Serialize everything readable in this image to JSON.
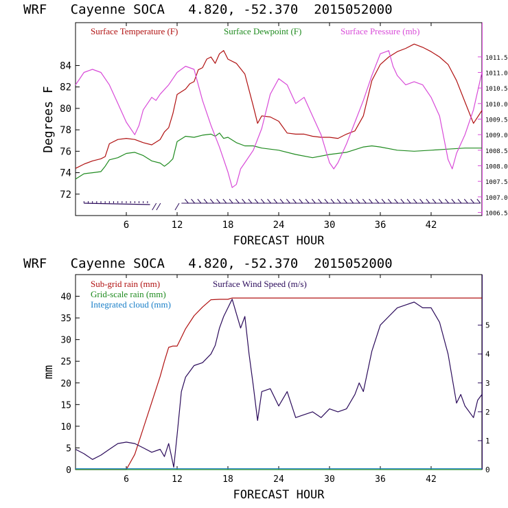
{
  "colors": {
    "temperature": "#b01010",
    "dewpoint": "#1e8a1e",
    "pressure": "#d84ad8",
    "wind": "#2a0a5a",
    "subgrid": "#b01010",
    "gridscale": "#1e8a1e",
    "cloud": "#1a7fc8",
    "axis": "#000000"
  },
  "chart_data": [
    {
      "type": "line",
      "title": "WRF   Cayenne SOCA   4.820, -52.370  2015052000",
      "xlabel": "FORECAST HOUR",
      "ylabel": "Degrees F",
      "x_ticks": [
        "6",
        "12",
        "18",
        "24",
        "30",
        "36",
        "42"
      ],
      "x_tick_values": [
        6,
        12,
        18,
        24,
        30,
        36,
        42
      ],
      "xlim": [
        0,
        48
      ],
      "ylim": [
        70,
        88
      ],
      "y_ticks": [
        "72",
        "74",
        "76",
        "78",
        "80",
        "82",
        "84"
      ],
      "y_tick_values": [
        72,
        74,
        76,
        78,
        80,
        82,
        84
      ],
      "y2lim": [
        1006.4,
        1012.6
      ],
      "y2_ticks": [
        "1006.5",
        "1007.0",
        "1007.5",
        "1008.0",
        "1008.5",
        "1009.0",
        "1009.5",
        "1010.0",
        "1010.5",
        "1011.0",
        "1011.5"
      ],
      "y2_tick_values": [
        1006.5,
        1007.0,
        1007.5,
        1008.0,
        1008.5,
        1009.0,
        1009.5,
        1010.0,
        1010.5,
        1011.0,
        1011.5
      ],
      "series": [
        {
          "name": "Surface Temperature (F)",
          "axis": "left",
          "x": [
            0,
            1,
            2,
            3,
            3.5,
            4,
            5,
            6,
            7,
            8,
            9,
            10,
            10.5,
            11,
            11.5,
            12,
            13,
            13.5,
            14,
            14.5,
            15,
            15.5,
            16,
            16.5,
            17,
            17.5,
            18,
            19,
            20,
            21,
            21.5,
            22,
            23,
            24,
            25,
            26,
            27,
            28,
            29,
            30,
            31,
            32,
            33,
            34,
            35,
            36,
            37,
            38,
            39,
            40,
            41,
            42,
            43,
            44,
            45,
            46,
            47,
            48
          ],
          "y": [
            74.4,
            74.8,
            75.1,
            75.3,
            75.5,
            76.7,
            77.1,
            77.2,
            77.1,
            76.8,
            76.6,
            77.1,
            77.8,
            78.2,
            79.5,
            81.3,
            81.8,
            82.3,
            82.5,
            83.6,
            83.8,
            84.6,
            84.8,
            84.2,
            85.1,
            85.4,
            84.6,
            84.2,
            83.2,
            80.2,
            78.6,
            79.3,
            79.2,
            78.8,
            77.7,
            77.6,
            77.6,
            77.4,
            77.3,
            77.3,
            77.2,
            77.6,
            77.9,
            79.3,
            82.6,
            84.1,
            84.8,
            85.3,
            85.6,
            86.0,
            85.7,
            85.3,
            84.8,
            84.1,
            82.6,
            80.6,
            78.6,
            79.8
          ]
        },
        {
          "name": "Surface Dewpoint (F)",
          "axis": "left",
          "x": [
            0,
            1,
            2,
            3,
            3.5,
            4,
            5,
            6,
            7,
            8,
            9,
            10,
            10.5,
            11,
            11.5,
            12,
            13,
            14,
            15,
            16,
            16.5,
            17,
            17.5,
            18,
            19,
            20,
            21,
            22,
            24,
            26,
            28,
            30,
            32,
            34,
            35,
            36,
            38,
            40,
            42,
            44,
            46,
            48
          ],
          "y": [
            73.4,
            73.9,
            74.0,
            74.1,
            74.6,
            75.2,
            75.4,
            75.8,
            75.9,
            75.6,
            75.1,
            74.9,
            74.6,
            74.9,
            75.3,
            76.9,
            77.4,
            77.3,
            77.5,
            77.6,
            77.4,
            77.7,
            77.2,
            77.3,
            76.8,
            76.5,
            76.5,
            76.3,
            76.1,
            75.7,
            75.4,
            75.7,
            75.9,
            76.4,
            76.5,
            76.4,
            76.1,
            76.0,
            76.1,
            76.2,
            76.3,
            76.3
          ]
        },
        {
          "name": "Surface Pressure (mb)",
          "axis": "right",
          "x": [
            0,
            0.5,
            1,
            2,
            3,
            4,
            5,
            6,
            7,
            7.5,
            8,
            9,
            9.5,
            10,
            11,
            12,
            13,
            14,
            15,
            16,
            17,
            18,
            18.5,
            19,
            19.5,
            20,
            21,
            22,
            23,
            24,
            25,
            26,
            27,
            28,
            29,
            30,
            30.5,
            31,
            32,
            33,
            34,
            35,
            36,
            37,
            37.5,
            38,
            39,
            40,
            41,
            42,
            43,
            44,
            44.5,
            45,
            46,
            47,
            48
          ],
          "y": [
            1010.6,
            1010.8,
            1011.0,
            1011.1,
            1011.0,
            1010.6,
            1010.0,
            1009.4,
            1009.0,
            1009.3,
            1009.8,
            1010.2,
            1010.1,
            1010.3,
            1010.6,
            1011.0,
            1011.2,
            1011.1,
            1010.1,
            1009.3,
            1008.6,
            1007.8,
            1007.3,
            1007.4,
            1007.9,
            1008.1,
            1008.5,
            1009.2,
            1010.3,
            1010.8,
            1010.6,
            1010.0,
            1010.2,
            1009.6,
            1009.0,
            1008.1,
            1007.9,
            1008.1,
            1008.7,
            1009.4,
            1010.1,
            1010.9,
            1011.6,
            1011.7,
            1011.2,
            1010.9,
            1010.6,
            1010.7,
            1010.6,
            1010.2,
            1009.6,
            1008.2,
            1007.9,
            1008.4,
            1009.0,
            1009.8,
            1011.0
          ]
        }
      ]
    },
    {
      "type": "line",
      "title": "WRF   Cayenne SOCA   4.820, -52.370  2015052000",
      "xlabel": "FORECAST HOUR",
      "ylabel": "mm",
      "x_ticks": [
        "6",
        "12",
        "18",
        "24",
        "30",
        "36",
        "42"
      ],
      "x_tick_values": [
        6,
        12,
        18,
        24,
        30,
        36,
        42
      ],
      "xlim": [
        0,
        48
      ],
      "ylim": [
        0,
        45
      ],
      "y_ticks": [
        "0",
        "5",
        "10",
        "15",
        "20",
        "25",
        "30",
        "35",
        "40"
      ],
      "y_tick_values": [
        0,
        5,
        10,
        15,
        20,
        25,
        30,
        35,
        40
      ],
      "y2lim": [
        0,
        6.75
      ],
      "y2_ticks": [
        "0",
        "1",
        "2",
        "3",
        "4",
        "5"
      ],
      "y2_tick_values": [
        0,
        1,
        2,
        3,
        4,
        5
      ],
      "series": [
        {
          "name": "Sub-grid rain (mm)",
          "axis": "left",
          "x": [
            0,
            5.8,
            6,
            7,
            8,
            9,
            10,
            10.5,
            11,
            11.5,
            12,
            12.5,
            13,
            14,
            15,
            16,
            17,
            18,
            18.5,
            19,
            20,
            48
          ],
          "y": [
            0,
            0,
            0,
            3.5,
            9.5,
            15.5,
            21.5,
            25,
            28.2,
            28.5,
            28.5,
            30.5,
            32.5,
            35.5,
            37.5,
            39.2,
            39.3,
            39.3,
            39.6,
            39.6,
            39.6,
            39.6
          ]
        },
        {
          "name": "Grid-scale rain (mm)",
          "axis": "left",
          "x": [
            0,
            48
          ],
          "y": [
            0,
            0
          ]
        },
        {
          "name": "Integrated cloud (mm)",
          "axis": "left",
          "x": [
            0,
            3,
            48
          ],
          "y": [
            0.2,
            0.2,
            0.2
          ]
        },
        {
          "name": "Surface Wind Speed (m/s)",
          "axis": "right",
          "x": [
            0,
            1,
            2,
            3,
            4,
            5,
            6,
            7,
            8,
            9,
            10,
            10.5,
            11,
            11.3,
            11.6,
            12,
            12.5,
            13,
            14,
            15,
            16,
            16.5,
            17,
            17.5,
            18,
            18.5,
            19,
            19.5,
            20,
            20.5,
            21,
            21.5,
            22,
            23,
            24,
            25,
            26,
            27,
            28,
            29,
            30,
            31,
            32,
            33,
            33.5,
            34,
            35,
            36,
            37,
            38,
            39,
            40,
            41,
            42,
            43,
            44,
            45,
            45.5,
            46,
            47,
            47.5,
            48
          ],
          "y": [
            0.7,
            0.55,
            0.35,
            0.5,
            0.7,
            0.9,
            0.95,
            0.9,
            0.75,
            0.6,
            0.7,
            0.45,
            0.9,
            0.5,
            0.08,
            1.2,
            2.7,
            3.2,
            3.6,
            3.7,
            4.0,
            4.3,
            4.9,
            5.3,
            5.6,
            5.9,
            5.4,
            4.9,
            5.3,
            4.0,
            2.9,
            1.7,
            2.7,
            2.8,
            2.2,
            2.7,
            1.8,
            1.9,
            2.0,
            1.8,
            2.1,
            2.0,
            2.1,
            2.6,
            3.0,
            2.7,
            4.1,
            5.0,
            5.3,
            5.6,
            5.7,
            5.8,
            5.6,
            5.6,
            5.1,
            4.0,
            2.3,
            2.6,
            2.2,
            1.8,
            2.4,
            2.6
          ]
        }
      ]
    }
  ]
}
